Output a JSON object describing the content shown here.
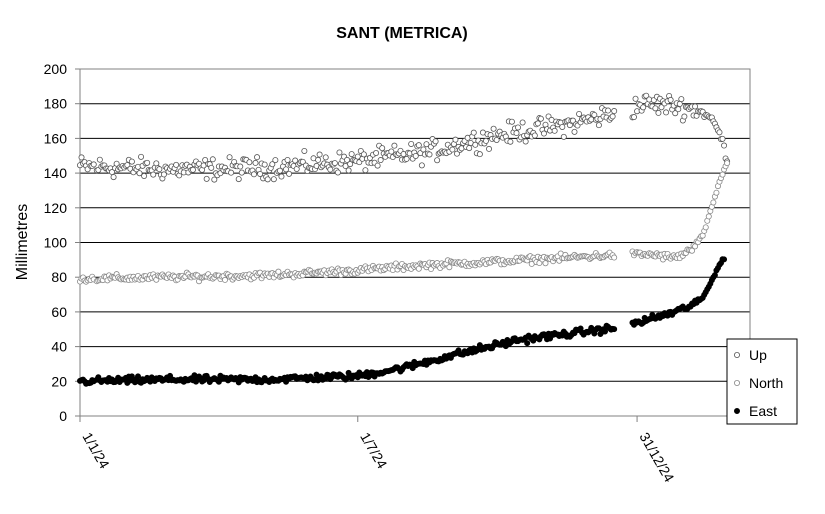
{
  "chart_data": {
    "type": "scatter",
    "title": "SANT (METRICA)",
    "xlabel": "",
    "ylabel": "Millimetres",
    "ylim": [
      0,
      200
    ],
    "yticks": [
      "0",
      "20",
      "40",
      "60",
      "80",
      "100",
      "120",
      "140",
      "160",
      "180",
      "200"
    ],
    "x_axis": "date",
    "xlim": [
      "2024-01-01",
      "2025-03-15"
    ],
    "xticks": [
      {
        "label": "1/1/24",
        "date": "2024-01-01"
      },
      {
        "label": "1/7/24",
        "date": "2024-07-01"
      },
      {
        "label": "31/12/24",
        "date": "2024-12-31"
      }
    ],
    "grid": "horizontal",
    "legend_position": "bottom-right",
    "series": [
      {
        "name": "Up",
        "marker": "open-circle",
        "color": "#555555",
        "trend": [
          [
            "2024-01-01",
            144
          ],
          [
            "2024-03-01",
            142
          ],
          [
            "2024-05-01",
            143
          ],
          [
            "2024-07-01",
            147
          ],
          [
            "2024-08-15",
            152
          ],
          [
            "2024-10-01",
            162
          ],
          [
            "2024-11-15",
            168
          ],
          [
            "2024-12-20",
            175
          ],
          [
            "2025-01-05",
            180
          ],
          [
            "2025-01-25",
            179
          ],
          [
            "2025-02-10",
            176
          ],
          [
            "2025-02-18",
            171
          ],
          [
            "2025-02-22",
            165
          ],
          [
            "2025-02-25",
            158
          ],
          [
            "2025-02-28",
            148
          ]
        ],
        "scatter_mm": 9
      },
      {
        "name": "North",
        "marker": "open-circle",
        "color": "#888888",
        "trend": [
          [
            "2024-01-01",
            79
          ],
          [
            "2024-03-01",
            80
          ],
          [
            "2024-05-01",
            81
          ],
          [
            "2024-07-01",
            84
          ],
          [
            "2024-08-15",
            87
          ],
          [
            "2024-10-01",
            89
          ],
          [
            "2024-12-20",
            93
          ],
          [
            "2025-01-10",
            93
          ],
          [
            "2025-01-25",
            91
          ],
          [
            "2025-02-05",
            96
          ],
          [
            "2025-02-12",
            104
          ],
          [
            "2025-02-18",
            120
          ],
          [
            "2025-02-22",
            132
          ],
          [
            "2025-02-26",
            142
          ],
          [
            "2025-02-28",
            146
          ]
        ],
        "scatter_mm": 3
      },
      {
        "name": "East",
        "marker": "filled-circle",
        "color": "#000000",
        "trend": [
          [
            "2024-01-01",
            20
          ],
          [
            "2024-03-01",
            21
          ],
          [
            "2024-05-01",
            21
          ],
          [
            "2024-07-01",
            23
          ],
          [
            "2024-08-01",
            28
          ],
          [
            "2024-09-01",
            35
          ],
          [
            "2024-10-15",
            44
          ],
          [
            "2024-12-20",
            51
          ],
          [
            "2025-01-05",
            55
          ],
          [
            "2025-01-25",
            60
          ],
          [
            "2025-02-05",
            64
          ],
          [
            "2025-02-12",
            68
          ],
          [
            "2025-02-18",
            78
          ],
          [
            "2025-02-22",
            86
          ],
          [
            "2025-02-26",
            91
          ]
        ],
        "scatter_mm": 3
      }
    ]
  }
}
